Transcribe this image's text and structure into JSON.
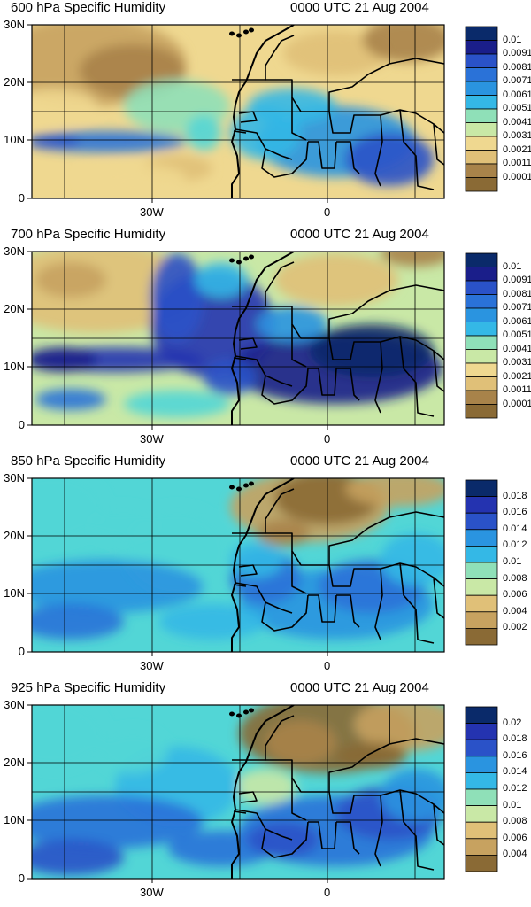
{
  "panels": [
    {
      "title_left": "600 hPa Specific Humidity",
      "title_right": "0000 UTC 21 Aug 2004",
      "colorbar_labels": [
        "0.01",
        "0.0091",
        "0.0081",
        "0.0071",
        "0.0061",
        "0.0051",
        "0.0041",
        "0.0031",
        "0.0021",
        "0.0011",
        "0.0001"
      ]
    },
    {
      "title_left": "700 hPa Specific Humidity",
      "title_right": "0000 UTC 21 Aug 2004",
      "colorbar_labels": [
        "0.01",
        "0.0091",
        "0.0081",
        "0.0071",
        "0.0061",
        "0.0051",
        "0.0041",
        "0.0031",
        "0.0021",
        "0.0011",
        "0.0001"
      ]
    },
    {
      "title_left": "850 hPa Specific Humidity",
      "title_right": "0000 UTC 21 Aug 2004",
      "colorbar_labels": [
        "0.018",
        "0.016",
        "0.014",
        "0.012",
        "0.01",
        "0.008",
        "0.006",
        "0.004",
        "0.002"
      ]
    },
    {
      "title_left": "925 hPa Specific Humidity",
      "title_right": "0000 UTC 21 Aug 2004",
      "colorbar_labels": [
        "0.02",
        "0.018",
        "0.016",
        "0.014",
        "0.012",
        "0.01",
        "0.008",
        "0.006",
        "0.004"
      ]
    }
  ],
  "axes": {
    "lat_labels": [
      "30N",
      "20N",
      "10N",
      "0"
    ],
    "lon_labels": [
      "30W",
      "0"
    ]
  },
  "colors": {
    "palette": [
      "#8a6a35",
      "#a8834a",
      "#c7a260",
      "#e0c078",
      "#efd890",
      "#c9e8a6",
      "#8fe0b8",
      "#52d6d6",
      "#34b8e6",
      "#2a94e0",
      "#2a72d8",
      "#2a52c8",
      "#2433b0",
      "#1a1e8a",
      "#0a2a6a"
    ]
  }
}
